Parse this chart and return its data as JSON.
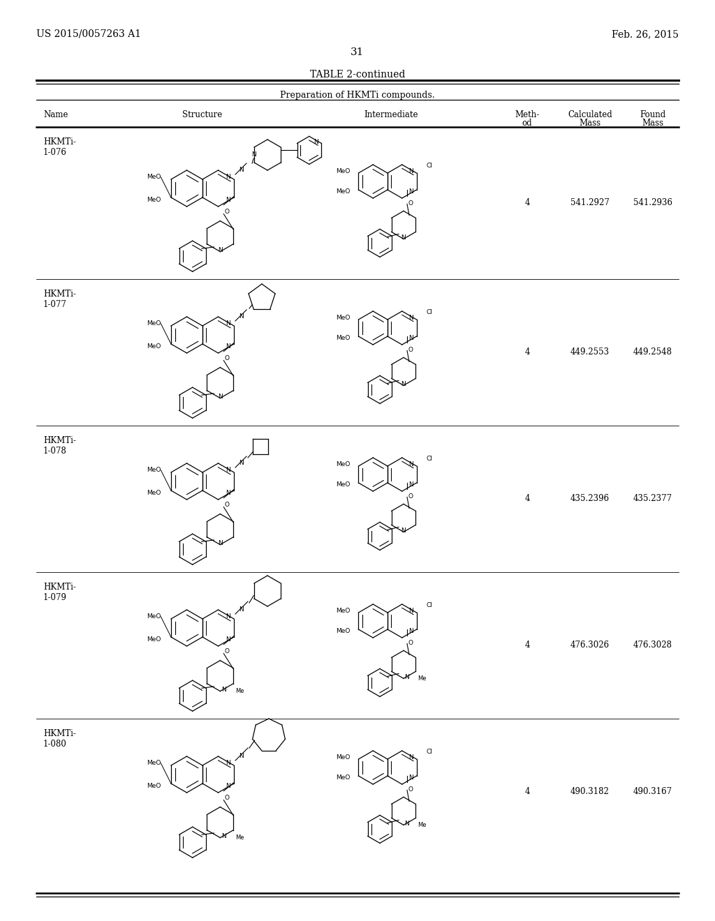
{
  "page_number": "31",
  "left_header": "US 2015/0057263 A1",
  "right_header": "Feb. 26, 2015",
  "table_title": "TABLE 2-continued",
  "table_subtitle": "Preparation of HKMTi compounds.",
  "names": [
    "HKMTi-\n1-076",
    "HKMTi-\n1-077",
    "HKMTi-\n1-078",
    "HKMTi-\n1-079",
    "HKMTi-\n1-080"
  ],
  "methods": [
    "4",
    "4",
    "4",
    "4",
    "4"
  ],
  "calc_masses": [
    "541.2927",
    "449.2553",
    "435.2396",
    "476.3026",
    "490.3182"
  ],
  "found_masses": [
    "541.2936",
    "449.2548",
    "435.2377",
    "476.3028",
    "490.3167"
  ],
  "background_color": "#ffffff",
  "text_color": "#000000"
}
